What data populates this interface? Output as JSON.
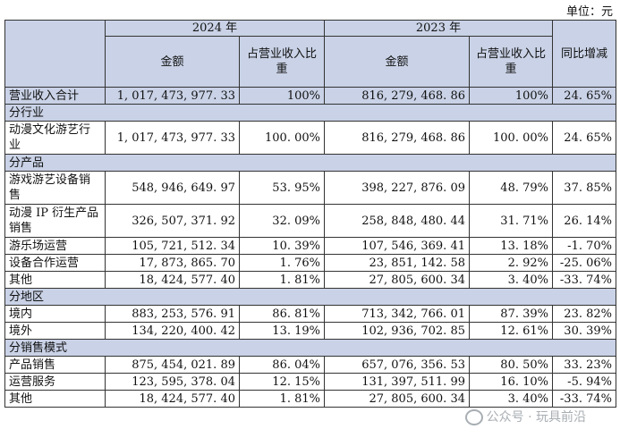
{
  "unit": "单位：元",
  "header": {
    "col_year_2024": "2024 年",
    "col_year_2023": "2023 年",
    "amount": "金额",
    "share": "占营业收入比重",
    "yoy": "同比增减"
  },
  "rows": [
    {
      "type": "total",
      "label": "营业收入合计",
      "a2024": "1, 017, 473, 977. 33",
      "s2024": "100%",
      "a2023": "816, 279, 468. 86",
      "s2023": "100%",
      "yoy": "24. 65%"
    },
    {
      "type": "section",
      "label": "分行业"
    },
    {
      "type": "row",
      "label": "动漫文化游艺行业",
      "tall": true,
      "a2024": "1, 017, 473, 977. 33",
      "s2024": "100. 00%",
      "a2023": "816, 279, 468. 86",
      "s2023": "100. 00%",
      "yoy": "24. 65%"
    },
    {
      "type": "section",
      "label": "分产品"
    },
    {
      "type": "row",
      "label": "游戏游艺设备销售",
      "tall": true,
      "a2024": "548, 946, 649. 97",
      "s2024": "53. 95%",
      "a2023": "398, 227, 876. 09",
      "s2023": "48. 79%",
      "yoy": "37. 85%"
    },
    {
      "type": "row",
      "label": "动漫 IP 衍生产品销售",
      "tall": true,
      "a2024": "326, 507, 371. 92",
      "s2024": "32. 09%",
      "a2023": "258, 848, 480. 44",
      "s2023": "31. 71%",
      "yoy": "26. 14%"
    },
    {
      "type": "row",
      "label": "游乐场运营",
      "a2024": "105, 721, 512. 34",
      "s2024": "10. 39%",
      "a2023": "107, 546, 369. 41",
      "s2023": "13. 18%",
      "yoy": "-1. 70%"
    },
    {
      "type": "row",
      "label": "设备合作运营",
      "a2024": "17, 873, 865. 70",
      "s2024": "1. 76%",
      "a2023": "23, 851, 142. 58",
      "s2023": "2. 92%",
      "yoy": "-25. 06%"
    },
    {
      "type": "row",
      "label": "其他",
      "a2024": "18, 424, 577. 40",
      "s2024": "1. 81%",
      "a2023": "27, 805, 600. 34",
      "s2023": "3. 40%",
      "yoy": "-33. 74%"
    },
    {
      "type": "section",
      "label": "分地区"
    },
    {
      "type": "row",
      "label": "境内",
      "a2024": "883, 253, 576. 91",
      "s2024": "86. 81%",
      "a2023": "713, 342, 766. 01",
      "s2023": "87. 39%",
      "yoy": "23. 82%"
    },
    {
      "type": "row",
      "label": "境外",
      "a2024": "134, 220, 400. 42",
      "s2024": "13. 19%",
      "a2023": "102, 936, 702. 85",
      "s2023": "12. 61%",
      "yoy": "30. 39%"
    },
    {
      "type": "section",
      "label": "分销售模式"
    },
    {
      "type": "row",
      "label": "产品销售",
      "a2024": "875, 454, 021. 89",
      "s2024": "86. 04%",
      "a2023": "657, 076, 356. 53",
      "s2023": "80. 50%",
      "yoy": "33. 23%"
    },
    {
      "type": "row",
      "label": "运营服务",
      "a2024": "123, 595, 378. 04",
      "s2024": "12. 15%",
      "a2023": "131, 397, 511. 99",
      "s2023": "16. 10%",
      "yoy": "-5. 94%"
    },
    {
      "type": "row",
      "label": "其他",
      "a2024": "18, 424, 577. 40",
      "s2024": "1. 81%",
      "a2023": "27, 805, 600. 34",
      "s2023": "3. 40%",
      "yoy": "-33. 74%"
    }
  ],
  "watermark": "公众号 · 玩具前沿"
}
